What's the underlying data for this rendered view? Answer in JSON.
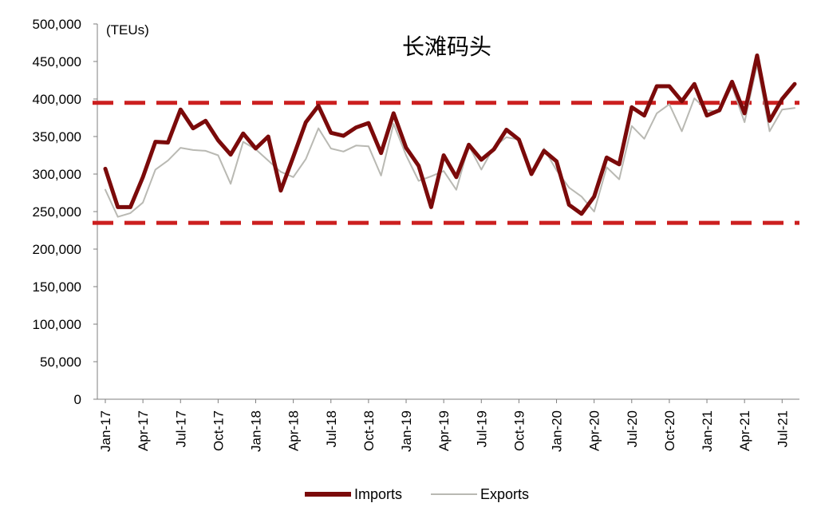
{
  "chart_data": {
    "type": "line",
    "title": "长滩码头",
    "unit_label": "(TEUs)",
    "xlabel": "",
    "ylabel": "",
    "ylim": [
      0,
      500000
    ],
    "yticks": [
      "0",
      "50,000",
      "100,000",
      "150,000",
      "200,000",
      "250,000",
      "300,000",
      "350,000",
      "400,000",
      "450,000",
      "500,000"
    ],
    "x": [
      "Jan-17",
      "Feb-17",
      "Mar-17",
      "Apr-17",
      "May-17",
      "Jun-17",
      "Jul-17",
      "Aug-17",
      "Sep-17",
      "Oct-17",
      "Nov-17",
      "Dec-17",
      "Jan-18",
      "Feb-18",
      "Mar-18",
      "Apr-18",
      "May-18",
      "Jun-18",
      "Jul-18",
      "Aug-18",
      "Sep-18",
      "Oct-18",
      "Nov-18",
      "Dec-18",
      "Jan-19",
      "Feb-19",
      "Mar-19",
      "Apr-19",
      "May-19",
      "Jun-19",
      "Jul-19",
      "Aug-19",
      "Sep-19",
      "Oct-19",
      "Nov-19",
      "Dec-19",
      "Jan-20",
      "Feb-20",
      "Mar-20",
      "Apr-20",
      "May-20",
      "Jun-20",
      "Jul-20",
      "Aug-20",
      "Sep-20",
      "Oct-20",
      "Nov-20",
      "Dec-20",
      "Jan-21",
      "Feb-21",
      "Mar-21",
      "Apr-21",
      "May-21",
      "Jun-21",
      "Jul-21",
      "Aug-21"
    ],
    "x_tick_labels": [
      "Jan-17",
      "Apr-17",
      "Jul-17",
      "Oct-17",
      "Jan-18",
      "Apr-18",
      "Jul-18",
      "Oct-18",
      "Jan-19",
      "Apr-19",
      "Jul-19",
      "Oct-19",
      "Jan-20",
      "Apr-20",
      "Jul-20",
      "Oct-20",
      "Jan-21",
      "Apr-21",
      "Jul-21"
    ],
    "series": [
      {
        "name": "Imports",
        "color": "#7b0a0a",
        "values": [
          307000,
          256000,
          256000,
          296000,
          343000,
          342000,
          386000,
          361000,
          371000,
          345000,
          326000,
          354000,
          334000,
          350000,
          278000,
          323000,
          369000,
          391000,
          355000,
          351000,
          362000,
          368000,
          328000,
          381000,
          335000,
          311000,
          256000,
          325000,
          296000,
          339000,
          319000,
          333000,
          359000,
          346000,
          300000,
          331000,
          317000,
          259000,
          247000,
          270000,
          322000,
          313000,
          389000,
          378000,
          417000,
          417000,
          397000,
          420000,
          378000,
          385000,
          423000,
          381000,
          458000,
          371000,
          400000,
          420000
        ]
      },
      {
        "name": "Exports",
        "color": "#b9b9b3",
        "values": [
          279000,
          243000,
          248000,
          262000,
          306000,
          318000,
          335000,
          332000,
          331000,
          325000,
          287000,
          343000,
          333000,
          318000,
          303000,
          296000,
          320000,
          361000,
          334000,
          330000,
          338000,
          337000,
          298000,
          367000,
          325000,
          291000,
          297000,
          304000,
          279000,
          338000,
          306000,
          336000,
          349000,
          346000,
          304000,
          334000,
          305000,
          282000,
          270000,
          250000,
          309000,
          293000,
          364000,
          347000,
          381000,
          393000,
          357000,
          401000,
          385000,
          383000,
          417000,
          369000,
          446000,
          357000,
          386000,
          388000
        ]
      }
    ],
    "reference_lines": [
      {
        "value": 395000,
        "color": "#cc1f1f",
        "style": "dashed"
      },
      {
        "value": 235000,
        "color": "#cc1f1f",
        "style": "dashed"
      }
    ],
    "legend": {
      "placement": "bottom-center",
      "entries": [
        "Imports",
        "Exports"
      ]
    },
    "grid": false
  }
}
